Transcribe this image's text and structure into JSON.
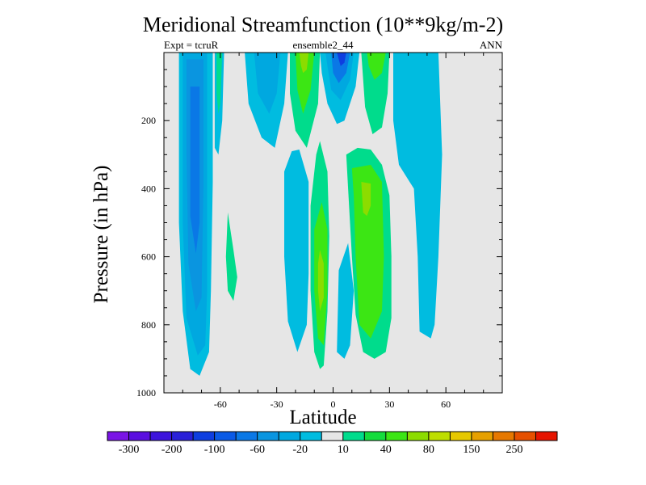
{
  "chart_data": {
    "type": "heatmap",
    "title": "Meridional Streamfunction (10**9kg/m-2)",
    "subtitle_left": "Expt = tcruR",
    "subtitle_center": "ensemble2_44",
    "subtitle_right": "ANN",
    "xlabel": "Latitude",
    "ylabel": "Pressure (in hPa)",
    "xlim": [
      -90,
      90
    ],
    "ylim": [
      1000,
      0
    ],
    "xticks": [
      -60,
      -30,
      0,
      30,
      60
    ],
    "yticks": [
      200,
      400,
      600,
      800,
      1000
    ],
    "background_color": "#e6e6e6",
    "colorbar": {
      "levels": [
        "-300",
        "-200",
        "-100",
        "-60",
        "-20",
        "10",
        "40",
        "80",
        "150",
        "250"
      ],
      "colors": [
        "#7a14e6",
        "#5a0ee0",
        "#3d14dc",
        "#2a20d8",
        "#0e3ee0",
        "#0a5ae6",
        "#0a78e6",
        "#0a95e0",
        "#00a8e0",
        "#00bce0",
        "#e6e6e6",
        "#00dc8c",
        "#14dc3c",
        "#3ce614",
        "#8cdc00",
        "#bede00",
        "#e6c800",
        "#e6a000",
        "#e67800",
        "#e65000",
        "#e61400"
      ]
    },
    "regions": [
      {
        "color": "#00bce0",
        "points": [
          [
            -82,
            0
          ],
          [
            -64,
            0
          ],
          [
            -64,
            380
          ],
          [
            -65,
            700
          ],
          [
            -66,
            880
          ],
          [
            -71,
            950
          ],
          [
            -76,
            930
          ],
          [
            -80,
            760
          ],
          [
            -82,
            500
          ]
        ]
      },
      {
        "color": "#00a8e0",
        "points": [
          [
            -80,
            0
          ],
          [
            -67,
            0
          ],
          [
            -67,
            300
          ],
          [
            -67,
            700
          ],
          [
            -68,
            860
          ],
          [
            -72,
            890
          ],
          [
            -78,
            780
          ],
          [
            -80,
            500
          ]
        ]
      },
      {
        "color": "#0a95e0",
        "points": [
          [
            -78,
            20
          ],
          [
            -69,
            20
          ],
          [
            -69,
            400
          ],
          [
            -70,
            720
          ],
          [
            -73,
            760
          ],
          [
            -77,
            620
          ],
          [
            -78,
            300
          ]
        ]
      },
      {
        "color": "#0a78e6",
        "points": [
          [
            -76,
            100
          ],
          [
            -71,
            100
          ],
          [
            -71,
            500
          ],
          [
            -73,
            590
          ],
          [
            -76,
            480
          ]
        ]
      },
      {
        "color": "#00bce0",
        "points": [
          [
            -63,
            0
          ],
          [
            -58,
            0
          ],
          [
            -59,
            200
          ],
          [
            -61,
            300
          ],
          [
            -63,
            280
          ]
        ]
      },
      {
        "color": "#00dc8c",
        "points": [
          [
            -62,
            0
          ],
          [
            -59,
            0
          ],
          [
            -60,
            150
          ],
          [
            -61,
            180
          ],
          [
            -62,
            120
          ]
        ]
      },
      {
        "color": "#00dc8c",
        "points": [
          [
            -56,
            470
          ],
          [
            -53,
            580
          ],
          [
            -51,
            660
          ],
          [
            -53,
            730
          ],
          [
            -56,
            700
          ],
          [
            -57,
            600
          ]
        ]
      },
      {
        "color": "#00bce0",
        "points": [
          [
            -47,
            0
          ],
          [
            -24,
            0
          ],
          [
            -26,
            150
          ],
          [
            -31,
            280
          ],
          [
            -38,
            250
          ],
          [
            -45,
            150
          ]
        ]
      },
      {
        "color": "#00a8e0",
        "points": [
          [
            -42,
            0
          ],
          [
            -28,
            0
          ],
          [
            -30,
            120
          ],
          [
            -34,
            180
          ],
          [
            -40,
            120
          ]
        ]
      },
      {
        "color": "#00dc8c",
        "points": [
          [
            -23,
            0
          ],
          [
            -7,
            0
          ],
          [
            -8,
            150
          ],
          [
            -14,
            280
          ],
          [
            -20,
            230
          ],
          [
            -23,
            120
          ]
        ]
      },
      {
        "color": "#3ce614",
        "points": [
          [
            -20,
            0
          ],
          [
            -10,
            0
          ],
          [
            -12,
            110
          ],
          [
            -16,
            180
          ],
          [
            -19,
            110
          ]
        ]
      },
      {
        "color": "#8cdc00",
        "points": [
          [
            -18,
            0
          ],
          [
            -13,
            0
          ],
          [
            -14,
            50
          ],
          [
            -16,
            60
          ],
          [
            -17,
            40
          ]
        ]
      },
      {
        "color": "#00bce0",
        "points": [
          [
            -7,
            0
          ],
          [
            14,
            0
          ],
          [
            12,
            100
          ],
          [
            6,
            200
          ],
          [
            2,
            210
          ],
          [
            -3,
            150
          ],
          [
            -6,
            60
          ]
        ]
      },
      {
        "color": "#00a8e0",
        "points": [
          [
            -4,
            0
          ],
          [
            11,
            0
          ],
          [
            9,
            80
          ],
          [
            4,
            140
          ],
          [
            -1,
            110
          ],
          [
            -3,
            40
          ]
        ]
      },
      {
        "color": "#0a78e6",
        "points": [
          [
            -1,
            0
          ],
          [
            9,
            0
          ],
          [
            7,
            60
          ],
          [
            3,
            90
          ],
          [
            0,
            60
          ]
        ]
      },
      {
        "color": "#0e3ee0",
        "points": [
          [
            2,
            0
          ],
          [
            7,
            0
          ],
          [
            6,
            30
          ],
          [
            4,
            40
          ],
          [
            3,
            20
          ]
        ]
      },
      {
        "color": "#00dc8c",
        "points": [
          [
            15,
            0
          ],
          [
            30,
            0
          ],
          [
            29,
            120
          ],
          [
            26,
            220
          ],
          [
            21,
            240
          ],
          [
            17,
            160
          ]
        ]
      },
      {
        "color": "#3ce614",
        "points": [
          [
            18,
            0
          ],
          [
            28,
            0
          ],
          [
            26,
            60
          ],
          [
            22,
            80
          ],
          [
            19,
            40
          ]
        ]
      },
      {
        "color": "#00bce0",
        "points": [
          [
            32,
            0
          ],
          [
            56,
            0
          ],
          [
            58,
            300
          ],
          [
            56,
            600
          ],
          [
            54,
            800
          ],
          [
            52,
            840
          ],
          [
            46,
            820
          ],
          [
            45,
            600
          ],
          [
            43,
            400
          ],
          [
            35,
            330
          ],
          [
            32,
            200
          ]
        ]
      },
      {
        "color": "#00bce0",
        "points": [
          [
            -26,
            350
          ],
          [
            -22,
            290
          ],
          [
            -18,
            285
          ],
          [
            -13,
            380
          ],
          [
            -13,
            650
          ],
          [
            -14,
            800
          ],
          [
            -19,
            880
          ],
          [
            -24,
            790
          ],
          [
            -26,
            600
          ]
        ]
      },
      {
        "color": "#00dc8c",
        "points": [
          [
            -7,
            260
          ],
          [
            -3,
            350
          ],
          [
            -2,
            540
          ],
          [
            -3,
            760
          ],
          [
            -5,
            920
          ],
          [
            -7,
            930
          ],
          [
            -10,
            880
          ],
          [
            -12,
            700
          ],
          [
            -12,
            450
          ],
          [
            -9,
            300
          ]
        ]
      },
      {
        "color": "#3ce614",
        "points": [
          [
            -6,
            440
          ],
          [
            -3,
            520
          ],
          [
            -3,
            700
          ],
          [
            -5,
            860
          ],
          [
            -8,
            840
          ],
          [
            -10,
            700
          ],
          [
            -10,
            520
          ]
        ]
      },
      {
        "color": "#8cdc00",
        "points": [
          [
            -7,
            580
          ],
          [
            -5,
            620
          ],
          [
            -5,
            720
          ],
          [
            -7,
            760
          ],
          [
            -8,
            700
          ],
          [
            -8,
            620
          ]
        ]
      },
      {
        "color": "#00dc8c",
        "points": [
          [
            7,
            300
          ],
          [
            13,
            280
          ],
          [
            20,
            285
          ],
          [
            26,
            330
          ],
          [
            30,
            420
          ],
          [
            31,
            600
          ],
          [
            31,
            780
          ],
          [
            28,
            880
          ],
          [
            22,
            900
          ],
          [
            16,
            880
          ],
          [
            12,
            770
          ],
          [
            10,
            600
          ],
          [
            8,
            400
          ]
        ]
      },
      {
        "color": "#3ce614",
        "points": [
          [
            10,
            340
          ],
          [
            20,
            330
          ],
          [
            26,
            380
          ],
          [
            27,
            600
          ],
          [
            26,
            760
          ],
          [
            20,
            840
          ],
          [
            14,
            800
          ],
          [
            12,
            600
          ],
          [
            11,
            420
          ]
        ]
      },
      {
        "color": "#8cdc00",
        "points": [
          [
            15,
            380
          ],
          [
            20,
            385
          ],
          [
            20,
            450
          ],
          [
            18,
            480
          ],
          [
            16,
            470
          ]
        ]
      },
      {
        "color": "#00bce0",
        "points": [
          [
            3,
            640
          ],
          [
            8,
            560
          ],
          [
            11,
            700
          ],
          [
            9,
            860
          ],
          [
            6,
            900
          ],
          [
            2,
            880
          ]
        ]
      }
    ]
  }
}
